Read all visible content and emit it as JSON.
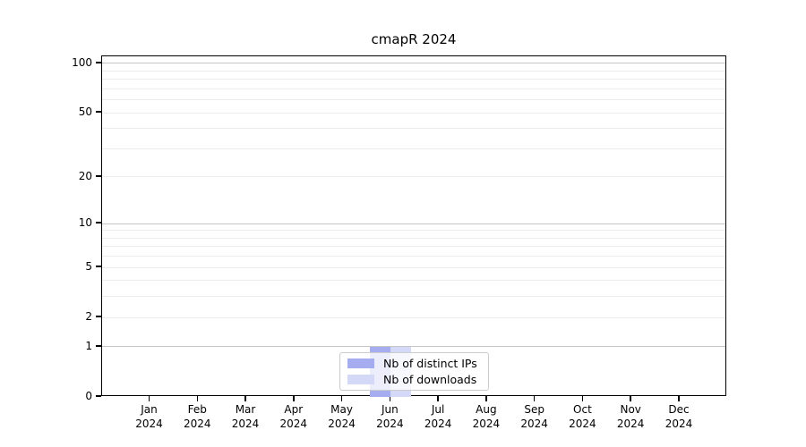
{
  "page": {
    "title": "cmapR 2024"
  },
  "chart_data": {
    "type": "bar",
    "title": "cmapR 2024",
    "categories": [
      "Jan",
      "Feb",
      "Mar",
      "Apr",
      "May",
      "Jun",
      "Jul",
      "Aug",
      "Sep",
      "Oct",
      "Nov",
      "Dec"
    ],
    "xtick_year": "2024",
    "series": [
      {
        "name": "Nb of distinct IPs",
        "color": "#a6acf0",
        "values": [
          0,
          0,
          0,
          0,
          0,
          1,
          0,
          0,
          0,
          0,
          0,
          0
        ]
      },
      {
        "name": "Nb of downloads",
        "color": "#d4d9f8",
        "values": [
          0,
          0,
          0,
          0,
          0,
          1,
          0,
          0,
          0,
          0,
          0,
          0
        ]
      }
    ],
    "xlabel": "",
    "ylabel": "",
    "scale": "log1p",
    "ylim": [
      0,
      110.5
    ],
    "yticks": [
      0,
      1,
      2,
      5,
      10,
      20,
      50,
      100
    ],
    "major_gridlines": [
      1,
      10,
      100
    ],
    "minor_gridlines": [
      2,
      3,
      4,
      5,
      6,
      7,
      8,
      9,
      20,
      30,
      40,
      50,
      60,
      70,
      80,
      90
    ],
    "grid": true,
    "legend_position": "bottom-center",
    "colors": {
      "background": "#ffffff",
      "axis": "#000000",
      "text": "#000000",
      "grid_major": "#c6c6c6",
      "grid_minor": "#ececec",
      "legend_border": "#cccccc",
      "legend_background": "rgba(255,255,255,0.8)"
    }
  }
}
